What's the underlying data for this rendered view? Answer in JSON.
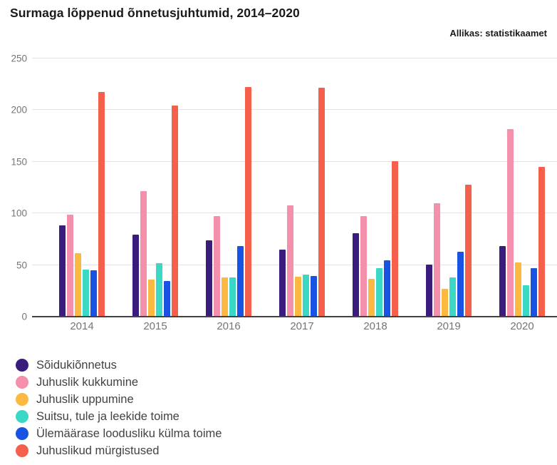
{
  "header": {
    "title": "Surmaga lõppenud õnnetusjuhtumid, 2014–2020",
    "source": "Allikas: statistikaamet"
  },
  "chart_data": {
    "type": "bar",
    "title": "Surmaga lõppenud õnnetusjuhtumid, 2014–2020",
    "source_note": "Allikas: statistikaamet",
    "categories": [
      "2014",
      "2015",
      "2016",
      "2017",
      "2018",
      "2019",
      "2020"
    ],
    "series": [
      {
        "name": "Sõidukiõnnetus",
        "color": "#3a1c7d",
        "values": [
          88,
          79,
          73,
          64,
          80,
          50,
          68
        ]
      },
      {
        "name": "Juhuslik kukkumine",
        "color": "#f48fac",
        "values": [
          98,
          121,
          97,
          107,
          97,
          109,
          181
        ]
      },
      {
        "name": "Juhuslik uppumine",
        "color": "#fbb942",
        "values": [
          61,
          35,
          37,
          38,
          36,
          26,
          52
        ]
      },
      {
        "name": "Suitsu, tule ja leekide toime",
        "color": "#3bd8c5",
        "values": [
          45,
          51,
          37,
          40,
          46,
          37,
          30
        ]
      },
      {
        "name": "Ülemäärase loodusliku külma toime",
        "color": "#1853e4",
        "values": [
          44,
          34,
          68,
          39,
          54,
          62,
          46
        ]
      },
      {
        "name": "Juhuslikud mürgistused",
        "color": "#f4604c",
        "values": [
          217,
          204,
          222,
          221,
          150,
          127,
          144
        ]
      }
    ],
    "xlabel": "",
    "ylabel": "",
    "ylim": [
      0,
      250
    ],
    "yticks": [
      0,
      50,
      100,
      150,
      200,
      250
    ],
    "grid": true,
    "legend_position": "bottom-left",
    "colors": {
      "background": "#ffffff",
      "gridline": "#e3e3e3",
      "axis_baseline": "#424242",
      "tick_label": "#757575",
      "legend_text": "#424242",
      "title_text": "#1a1a1a"
    }
  }
}
